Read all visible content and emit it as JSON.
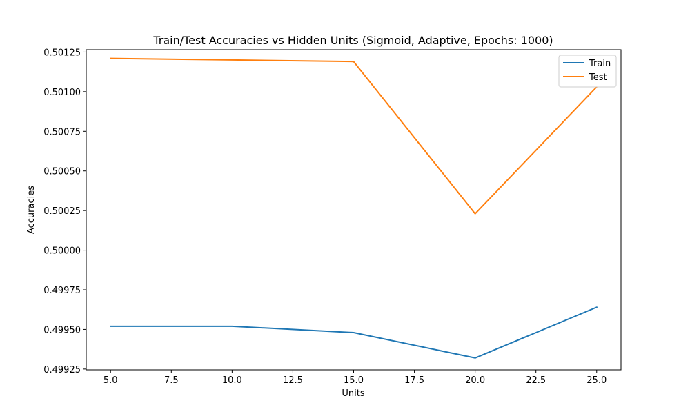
{
  "chart_data": {
    "type": "line",
    "title": "Train/Test Accuracies vs Hidden Units (Sigmoid, Adaptive, Epochs: 1000)",
    "xlabel": "Units",
    "ylabel": "Accuracies",
    "x": [
      5,
      10,
      15,
      20,
      25
    ],
    "xlim": [
      4,
      26
    ],
    "ylim": [
      0.499245,
      0.501265
    ],
    "x_ticks": [
      "5.0",
      "7.5",
      "10.0",
      "12.5",
      "15.0",
      "17.5",
      "20.0",
      "22.5",
      "25.0"
    ],
    "y_ticks": [
      "0.49925",
      "0.49950",
      "0.49975",
      "0.50000",
      "0.50025",
      "0.50050",
      "0.50075",
      "0.50100",
      "0.50125"
    ],
    "grid": false,
    "legend_position": "top-right",
    "series": [
      {
        "name": "Train",
        "color": "#1f77b4",
        "values": [
          0.49952,
          0.49952,
          0.49948,
          0.49932,
          0.49964
        ]
      },
      {
        "name": "Test",
        "color": "#ff7f0e",
        "values": [
          0.50121,
          0.5012,
          0.50119,
          0.50023,
          0.50103
        ]
      }
    ]
  }
}
